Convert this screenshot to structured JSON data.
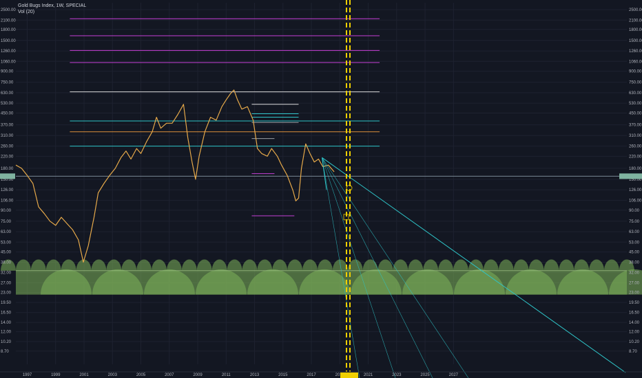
{
  "legend": {
    "title": "Gold Bugs Index, 1W, SPECIAL",
    "volume": "Vol (20)"
  },
  "colors": {
    "background": "#131722",
    "price": "#e6a94a",
    "magenta": "#c63fd6",
    "cyan": "#2ec4c8",
    "white": "#d9d9d9",
    "orange": "#e0913a",
    "gray": "#9aa0a6",
    "yellow": "#f0d000",
    "green": "#7db35a"
  },
  "chart_data": {
    "type": "line",
    "scale": "log",
    "title": "Gold Bugs Index, 1W, SPECIAL",
    "ylim": [
      7,
      2800
    ],
    "y_ticks": [
      "2500.00",
      "2100.00",
      "1800.00",
      "1500.00",
      "1260.00",
      "1060.00",
      "900.00",
      "750.00",
      "630.00",
      "530.00",
      "450.00",
      "370.00",
      "310.00",
      "260.00",
      "220.00",
      "180.00",
      "150.00",
      "126.00",
      "106.00",
      "90.00",
      "75.00",
      "63.00",
      "53.00",
      "45.00",
      "38.00",
      "32.00",
      "27.00",
      "23.00",
      "19.50",
      "16.50",
      "14.00",
      "12.00",
      "10.20",
      "8.70"
    ],
    "x_ticks": [
      "1997",
      "1999",
      "2001",
      "2003",
      "2005",
      "2007",
      "2009",
      "2011",
      "2013",
      "2015",
      "2017",
      "2019",
      "2021",
      "2023",
      "2025",
      "2027"
    ],
    "xlim": [
      1996.2,
      2039.2
    ],
    "series": [
      {
        "values_x": [
          1996.2,
          1996.6,
          1997.0,
          1997.4,
          1997.8,
          1998.2,
          1998.6,
          1999.0,
          1999.4,
          1999.8,
          2000.2,
          2000.6,
          2000.95,
          2001.3,
          2001.7,
          2002.0,
          2002.4,
          2002.8,
          2003.2,
          2003.6,
          2003.95,
          2004.3,
          2004.7,
          2005.0,
          2005.4,
          2005.8,
          2006.1,
          2006.4,
          2006.8,
          2007.2,
          2007.6,
          2008.0,
          2008.3,
          2008.6,
          2008.85,
          2009.1,
          2009.5,
          2009.9,
          2010.3,
          2010.7,
          2011.0,
          2011.3,
          2011.55,
          2011.8,
          2012.1,
          2012.5,
          2012.9,
          2013.2,
          2013.5,
          2013.9,
          2014.2,
          2014.6,
          2014.9,
          2015.3,
          2015.7,
          2015.9,
          2016.1,
          2016.3,
          2016.6,
          2016.9,
          2017.2,
          2017.5,
          2017.8,
          2018.2,
          2018.6
        ],
        "values_y": [
          190,
          180,
          160,
          140,
          95,
          85,
          75,
          70,
          80,
          72,
          65,
          55,
          38,
          50,
          80,
          120,
          140,
          160,
          180,
          215,
          240,
          210,
          250,
          230,
          280,
          330,
          420,
          350,
          380,
          380,
          440,
          520,
          300,
          200,
          150,
          220,
          330,
          420,
          400,
          500,
          560,
          620,
          660,
          560,
          480,
          500,
          400,
          250,
          230,
          220,
          250,
          220,
          190,
          160,
          125,
          105,
          110,
          180,
          270,
          230,
          200,
          210,
          185,
          190,
          170
        ]
      }
    ]
  }
}
